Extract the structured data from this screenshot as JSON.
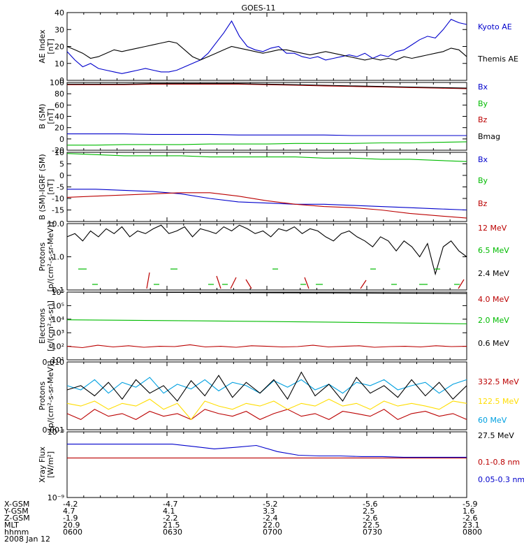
{
  "title": "GOES-11",
  "chart_data": [
    {
      "type": "line",
      "ylabel": [
        "AE Index",
        "[nT]"
      ],
      "ylim": [
        0,
        40
      ],
      "ticks": [
        "0",
        "10",
        "20",
        "30",
        "40"
      ],
      "series": [
        {
          "name": "Kyoto AE",
          "color": "#0000cc",
          "values": [
            17,
            12,
            8,
            10,
            7,
            6,
            5,
            4,
            5,
            6,
            7,
            6,
            5,
            5,
            6,
            8,
            10,
            12,
            16,
            22,
            28,
            35,
            26,
            20,
            18,
            17,
            19,
            20,
            16,
            16,
            14,
            13,
            14,
            12,
            13,
            14,
            15,
            14,
            16,
            13,
            15,
            14,
            17,
            18,
            21,
            24,
            26,
            25,
            30,
            36,
            34,
            33
          ]
        },
        {
          "name": "Themis AE",
          "color": "#000000",
          "values": [
            20,
            18,
            16,
            13,
            14,
            16,
            18,
            17,
            18,
            19,
            20,
            21,
            22,
            23,
            22,
            18,
            14,
            12,
            14,
            16,
            18,
            20,
            19,
            18,
            17,
            16,
            17,
            18,
            18,
            17,
            16,
            15,
            16,
            17,
            16,
            15,
            14,
            13,
            12,
            13,
            12,
            13,
            12,
            14,
            13,
            14,
            15,
            16,
            17,
            19,
            18,
            14
          ]
        }
      ]
    },
    {
      "type": "line",
      "ylabel": [
        "B (SM)",
        "[nT]"
      ],
      "ylim": [
        -20,
        100
      ],
      "ticks": [
        "-20",
        "0",
        "20",
        "40",
        "60",
        "80",
        "100"
      ],
      "series": [
        {
          "name": "Bx",
          "color": "#0000cc",
          "values": [
            9,
            9,
            9,
            8,
            8,
            8,
            7,
            7,
            7,
            7,
            6,
            6,
            6,
            6,
            6
          ]
        },
        {
          "name": "By",
          "color": "#00bb00",
          "values": [
            -11,
            -11,
            -10,
            -10,
            -10,
            -9,
            -9,
            -9,
            -8,
            -8,
            -8,
            -7,
            -7,
            -6,
            -5
          ]
        },
        {
          "name": "Bz",
          "color": "#bb0000",
          "values": [
            96,
            96,
            96,
            97,
            97,
            97,
            97,
            96,
            95,
            94,
            93,
            92,
            91,
            90,
            89
          ]
        },
        {
          "name": "Bmag",
          "color": "#000000",
          "values": [
            97,
            97,
            97,
            98,
            98,
            98,
            98,
            97,
            96,
            95,
            94,
            93,
            92,
            91,
            90
          ]
        }
      ]
    },
    {
      "type": "line",
      "ylabel": [
        "B (SM)-IGRF (SM)",
        "[nT]"
      ],
      "ylim": [
        -20,
        10
      ],
      "ticks": [
        "-15",
        "-10",
        "-5",
        "0",
        "5",
        "10"
      ],
      "series": [
        {
          "name": "Bx",
          "color": "#0000cc",
          "values": [
            -6,
            -6,
            -6.5,
            -7,
            -8,
            -10,
            -11.5,
            -12,
            -12.5,
            -12.5,
            -13,
            -13.5,
            -14,
            -14.5,
            -15
          ]
        },
        {
          "name": "By",
          "color": "#00bb00",
          "values": [
            9.5,
            9,
            8.5,
            8.5,
            8.5,
            8,
            8,
            8,
            8,
            7.5,
            7.5,
            7,
            7,
            6.5,
            6
          ]
        },
        {
          "name": "Bz",
          "color": "#bb0000",
          "values": [
            -9.5,
            -9,
            -8.5,
            -8,
            -7.5,
            -7.5,
            -9,
            -11,
            -12.5,
            -13.5,
            -14,
            -15,
            -16.5,
            -17.5,
            -18.5
          ]
        }
      ]
    },
    {
      "type": "line",
      "ylabel": [
        "Protons",
        "[p/(cm²-s-sr-MeV)]"
      ],
      "yscale": "log",
      "ylim": [
        0.1,
        10
      ],
      "ticks": [
        "0.1",
        "1.0",
        "10.0"
      ],
      "series": [
        {
          "name": "12 MeV",
          "color": "#bb0000",
          "values": []
        },
        {
          "name": "6.5 MeV",
          "color": "#00bb00",
          "values": []
        },
        {
          "name": "2.4 MeV",
          "color": "#000000",
          "values": [
            4,
            5,
            3,
            6,
            4,
            7,
            5,
            8,
            4,
            6,
            5,
            7,
            9,
            5,
            6,
            8,
            4,
            7,
            6,
            5,
            8,
            6,
            9,
            7,
            5,
            6,
            4,
            7,
            6,
            8,
            5,
            7,
            6,
            4,
            3,
            5,
            6,
            4,
            3,
            2,
            4,
            3,
            1.5,
            3,
            2,
            1,
            2.5,
            0.3,
            2,
            3,
            1.5,
            1
          ]
        }
      ]
    },
    {
      "type": "line",
      "ylabel": [
        "Electrons",
        "[e/(cm²-s-sr)]"
      ],
      "yscale": "log",
      "ylim": [
        10,
        1000000
      ],
      "ticks": [
        "10¹",
        "10²",
        "10³",
        "10⁴",
        "10⁵",
        "10⁶"
      ],
      "series": [
        {
          "name": "4.0 MeV",
          "color": "#bb0000",
          "values": [
            100,
            80,
            120,
            90,
            110,
            85,
            100,
            95,
            130,
            90,
            100,
            85,
            110,
            100,
            90,
            95,
            120,
            90,
            100,
            110,
            85,
            95,
            100,
            90,
            110,
            95,
            100
          ]
        },
        {
          "name": "2.0 MeV",
          "color": "#00bb00",
          "values": [
            9000,
            8500,
            8000,
            7500,
            7000,
            6500,
            6000,
            5500,
            5000,
            4500
          ]
        },
        {
          "name": "0.6 MeV",
          "color": "#000000",
          "values": [
            1000000,
            950000,
            900000,
            850000,
            800000
          ]
        }
      ]
    },
    {
      "type": "line",
      "ylabel": [
        "Protons",
        "[p/(cm²-s-sr-MeV)]"
      ],
      "yscale": "log",
      "ylim": [
        0.001,
        0.1
      ],
      "ticks": [
        "0.001",
        "0.010"
      ],
      "series": [
        {
          "name": "332.5 MeV",
          "color": "#bb0000",
          "values": [
            0.003,
            0.002,
            0.004,
            0.0025,
            0.003,
            0.002,
            0.0035,
            0.0025,
            0.003,
            0.002,
            0.004,
            0.003,
            0.0025,
            0.0035,
            0.002,
            0.003,
            0.004,
            0.0025,
            0.003,
            0.002,
            0.0035,
            0.003,
            0.0025,
            0.004,
            0.002,
            0.003,
            0.0035,
            0.0025,
            0.003,
            0.002
          ]
        },
        {
          "name": "122.5 MeV",
          "color": "#ffdd00",
          "values": [
            0.006,
            0.005,
            0.007,
            0.004,
            0.006,
            0.005,
            0.008,
            0.004,
            0.006,
            0.002,
            0.007,
            0.005,
            0.004,
            0.006,
            0.005,
            0.007,
            0.004,
            0.006,
            0.005,
            0.008,
            0.005,
            0.006,
            0.004,
            0.007,
            0.005,
            0.006,
            0.005,
            0.004,
            0.007,
            0.006
          ]
        },
        {
          "name": "60 MeV",
          "color": "#00a0e0",
          "values": [
            0.02,
            0.015,
            0.03,
            0.012,
            0.025,
            0.018,
            0.035,
            0.012,
            0.022,
            0.016,
            0.03,
            0.014,
            0.025,
            0.02,
            0.012,
            0.028,
            0.018,
            0.03,
            0.015,
            0.022,
            0.012,
            0.025,
            0.02,
            0.03,
            0.015,
            0.02,
            0.025,
            0.012,
            0.022,
            0.03
          ]
        },
        {
          "name": "27.5 MeV",
          "color": "#000000",
          "values": [
            0.015,
            0.02,
            0.01,
            0.025,
            0.008,
            0.03,
            0.012,
            0.02,
            0.007,
            0.028,
            0.01,
            0.04,
            0.009,
            0.025,
            0.012,
            0.03,
            0.008,
            0.05,
            0.01,
            0.022,
            0.007,
            0.035,
            0.012,
            0.02,
            0.009,
            0.03,
            0.01,
            0.025,
            0.008,
            0.02
          ]
        }
      ]
    },
    {
      "type": "line",
      "ylabel": [
        "Xray Flux",
        "[W/m²]"
      ],
      "yscale": "log",
      "ylim": [
        1e-09,
        1e-08
      ],
      "ticks": [
        "10⁻⁹",
        "10⁻⁸"
      ],
      "series": [
        {
          "name": "0.1-0.8 nm",
          "color": "#bb0000",
          "values": [
            4e-09,
            4e-09,
            4e-09,
            4e-09,
            4e-09,
            4e-09,
            4e-09,
            4e-09,
            4e-09,
            4e-09,
            4e-09,
            4e-09,
            4e-09,
            4e-09,
            4e-09,
            4e-09,
            4e-09,
            4e-09,
            4e-09,
            4e-09
          ]
        },
        {
          "name": "0.05-0.3 nm",
          "color": "#0000cc",
          "values": [
            6.5e-09,
            6.5e-09,
            6.5e-09,
            6.5e-09,
            6.5e-09,
            6.5e-09,
            6e-09,
            5.5e-09,
            5.8e-09,
            6.2e-09,
            5e-09,
            4.4e-09,
            4.3e-09,
            4.3e-09,
            4.2e-09,
            4.2e-09,
            4.1e-09,
            4.1e-09,
            4.1e-09,
            4.1e-09
          ]
        }
      ]
    }
  ],
  "x_axis": {
    "row_labels": [
      "X-GSM",
      "Y-GSM",
      "Z-GSM",
      "MLT",
      "hhmm",
      "2008 Jan 12"
    ],
    "columns": [
      [
        "-4.2",
        "4.7",
        "-1.9",
        "20.9",
        "0600"
      ],
      [
        "-4.7",
        "4.1",
        "-2.2",
        "21.5",
        "0630"
      ],
      [
        "-5.2",
        "3.3",
        "-2.4",
        "22.0",
        "0700"
      ],
      [
        "-5.6",
        "2.5",
        "-2.6",
        "22.5",
        "0730"
      ],
      [
        "-5.9",
        "1.6",
        "-2.6",
        "23.1",
        "0800"
      ]
    ]
  }
}
